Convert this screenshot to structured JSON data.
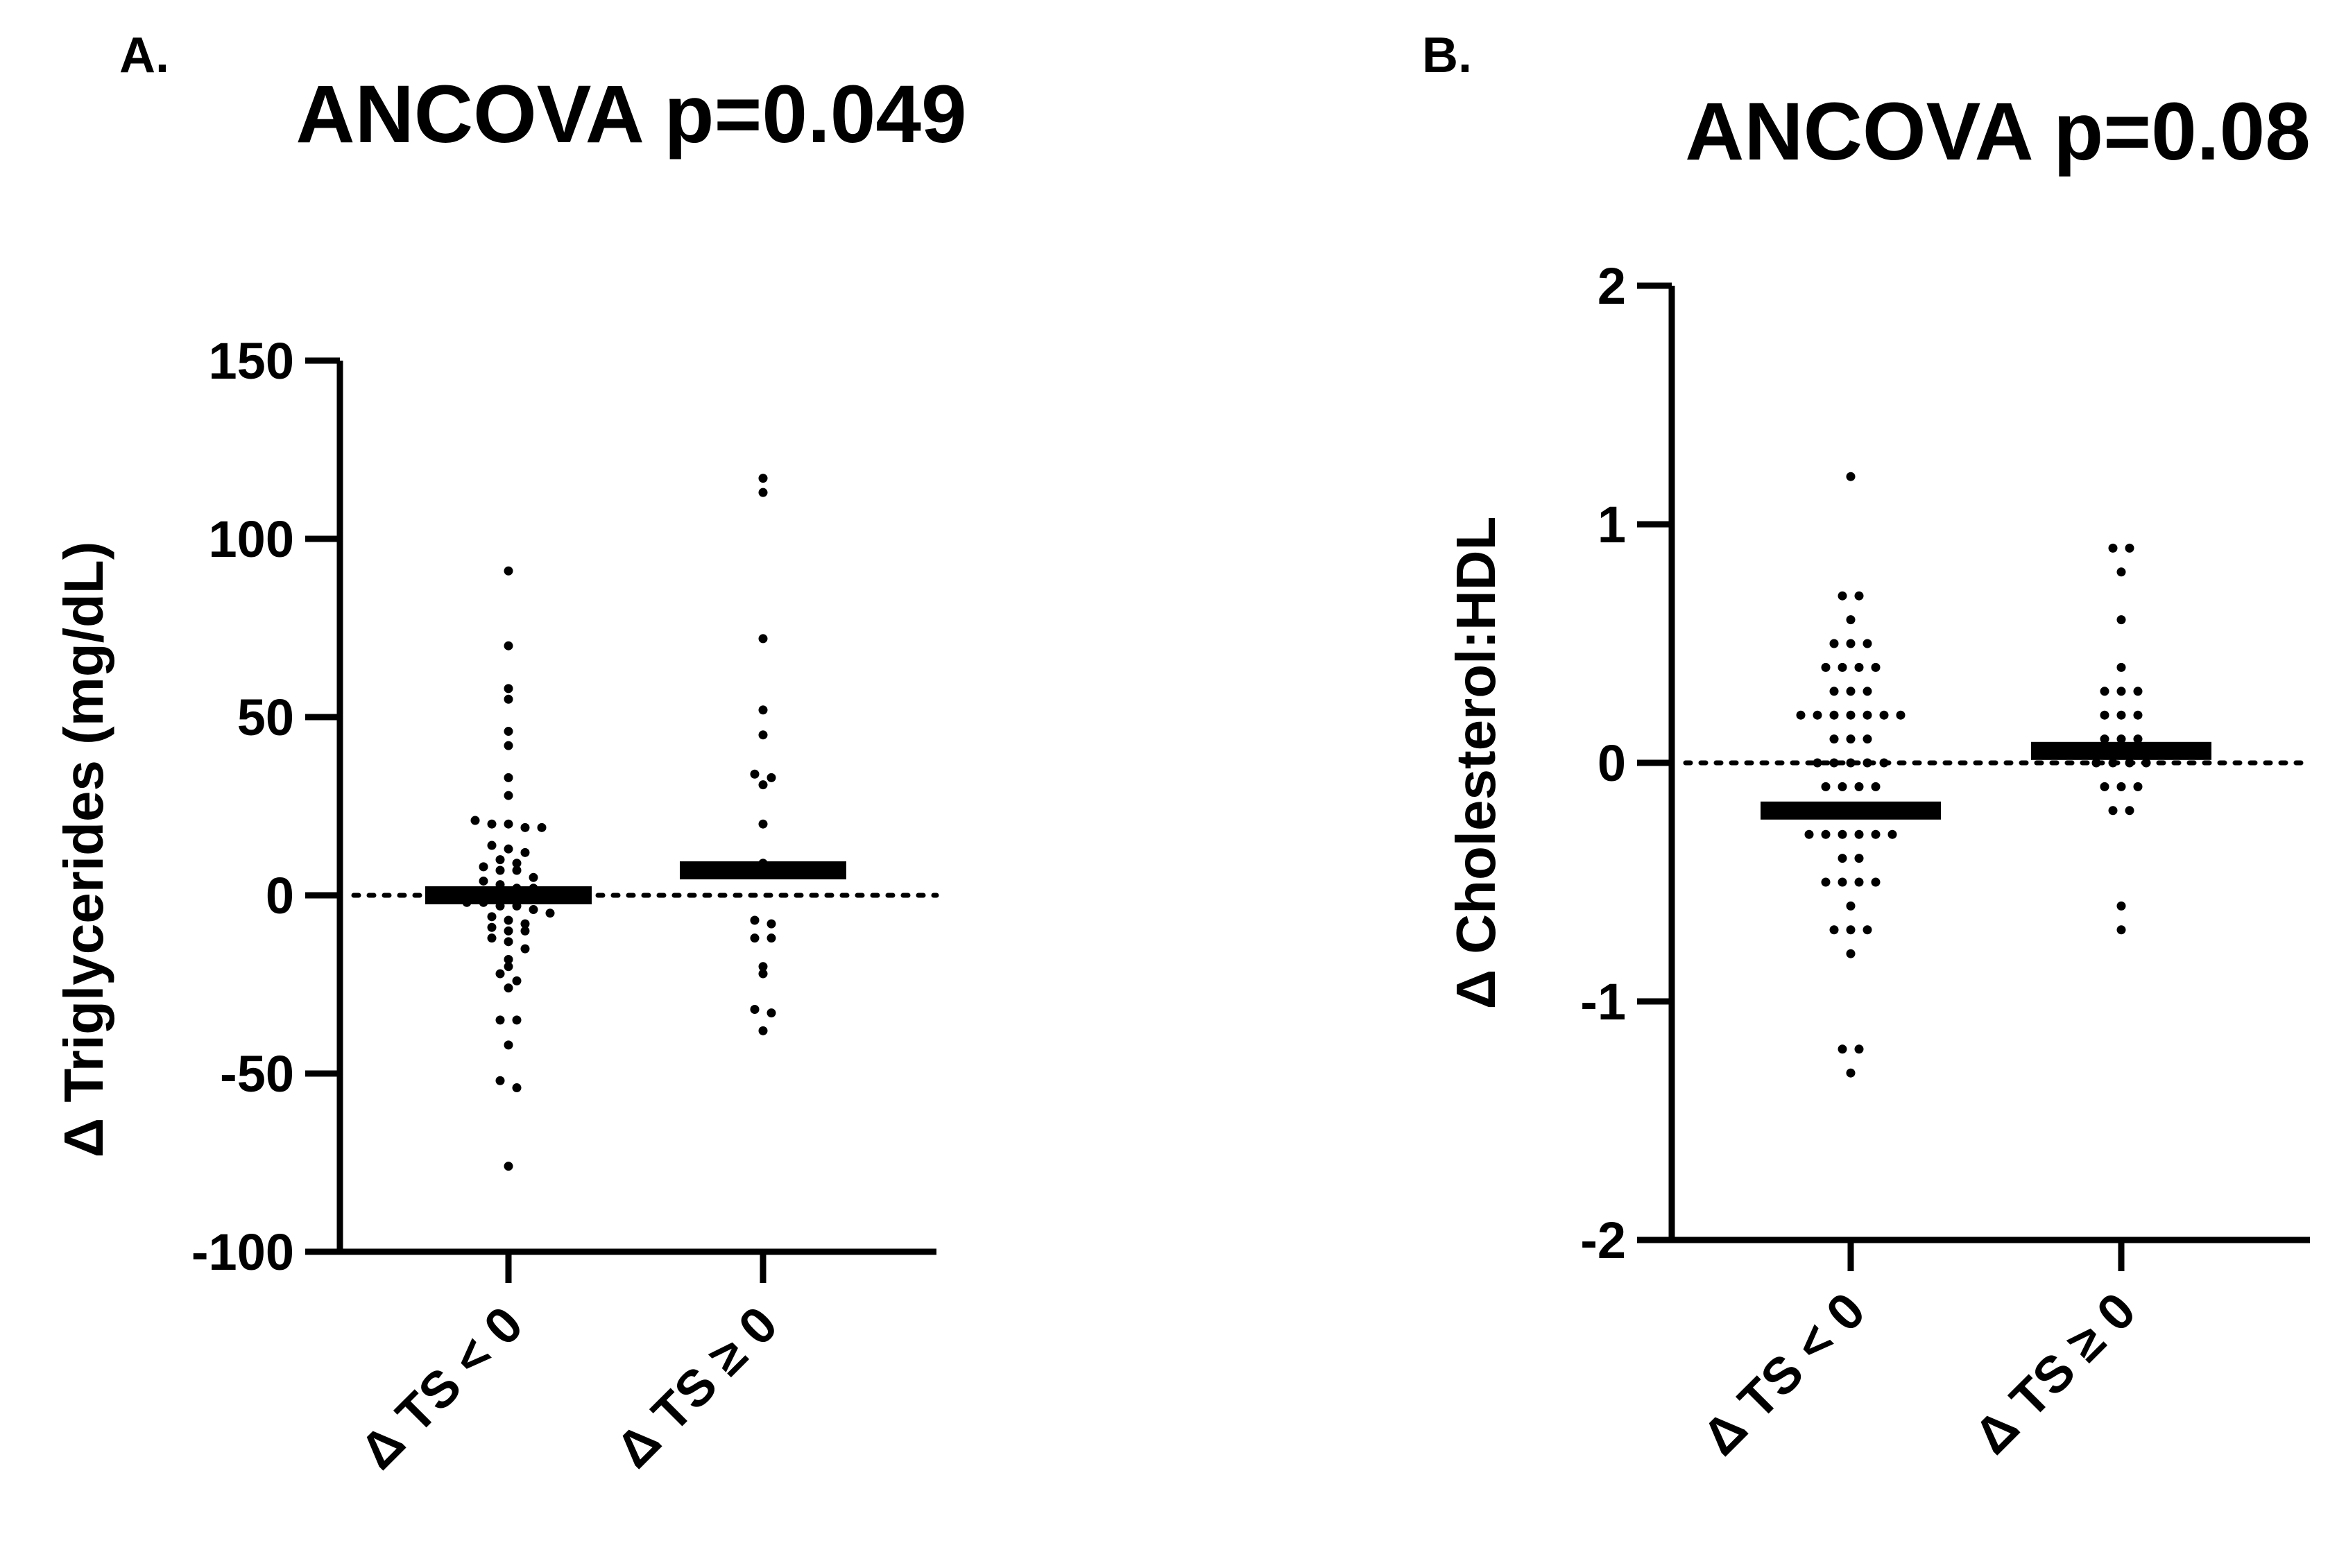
{
  "chart_data": [
    {
      "type": "scatter",
      "panel_label": "A.",
      "title": "ANCOVA p=0.049",
      "ylabel": "Δ Triglycerides (mg/dL)",
      "xlabel": "",
      "ylim": [
        -100,
        150
      ],
      "yticks": [
        -100,
        -50,
        0,
        50,
        100,
        150
      ],
      "ytick_labels": [
        "-100",
        "-50",
        "0",
        "50",
        "100",
        "150"
      ],
      "reference_line": 0,
      "categories": [
        "Δ TS < 0",
        "Δ TS ≥ 0"
      ],
      "means": [
        0,
        7
      ],
      "series": [
        {
          "name": "Δ TS < 0",
          "values": [
            91,
            70,
            58,
            55,
            46,
            42,
            33,
            28,
            21,
            20,
            20,
            19,
            19,
            14,
            13,
            12,
            10,
            9,
            8,
            7,
            7,
            5,
            4,
            3,
            2,
            2,
            1,
            1,
            0,
            -1,
            -2,
            -2,
            -3,
            -3,
            -4,
            -5,
            -6,
            -7,
            -8,
            -9,
            -10,
            -10,
            -12,
            -13,
            -15,
            -18,
            -20,
            -22,
            -24,
            -26,
            -35,
            -35,
            -42,
            -52,
            -54,
            -76
          ]
        },
        {
          "name": "Δ TS ≥ 0",
          "values": [
            117,
            113,
            72,
            52,
            45,
            34,
            33,
            31,
            20,
            9,
            -7,
            -8,
            -12,
            -12,
            -20,
            -22,
            -32,
            -33,
            -38
          ]
        }
      ]
    },
    {
      "type": "scatter",
      "panel_label": "B.",
      "title": "ANCOVA p=0.08",
      "ylabel": "Δ Cholesterol:HDL",
      "xlabel": "",
      "ylim": [
        -2,
        2
      ],
      "yticks": [
        -2,
        -1,
        0,
        1,
        2
      ],
      "ytick_labels": [
        "-2",
        "-1",
        "0",
        "1",
        "2"
      ],
      "reference_line": 0,
      "categories": [
        "Δ TS < 0",
        "Δ TS ≥ 0"
      ],
      "means": [
        -0.2,
        0.05
      ],
      "series": [
        {
          "name": "Δ TS < 0",
          "values": [
            1.2,
            0.7,
            0.7,
            0.6,
            0.5,
            0.5,
            0.5,
            0.4,
            0.4,
            0.4,
            0.4,
            0.3,
            0.3,
            0.3,
            0.2,
            0.2,
            0.2,
            0.2,
            0.2,
            0.2,
            0.2,
            0.1,
            0.1,
            0.1,
            0.0,
            0.0,
            0.0,
            0.0,
            0.0,
            -0.1,
            -0.1,
            -0.1,
            -0.1,
            -0.2,
            -0.2,
            -0.2,
            -0.3,
            -0.3,
            -0.3,
            -0.3,
            -0.3,
            -0.3,
            -0.4,
            -0.4,
            -0.5,
            -0.5,
            -0.5,
            -0.5,
            -0.6,
            -0.7,
            -0.7,
            -0.7,
            -0.8,
            -1.2,
            -1.2,
            -1.3
          ]
        },
        {
          "name": "Δ TS ≥ 0",
          "values": [
            0.9,
            0.9,
            0.8,
            0.6,
            0.4,
            0.3,
            0.3,
            0.3,
            0.2,
            0.2,
            0.2,
            0.1,
            0.1,
            0.1,
            0.0,
            0.0,
            0.0,
            0.0,
            -0.1,
            -0.1,
            -0.1,
            -0.2,
            -0.2,
            -0.6,
            -0.7
          ]
        }
      ]
    }
  ]
}
